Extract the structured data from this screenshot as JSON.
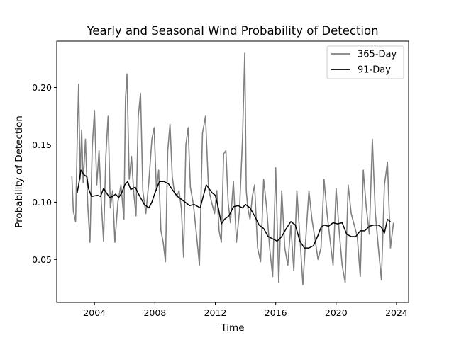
{
  "chart_data": {
    "type": "line",
    "title": "Yearly and Seasonal Wind Probability of Detection",
    "xlabel": "Time",
    "ylabel": "Probability of Detection",
    "xlim": [
      2001.5,
      2024.8
    ],
    "ylim": [
      0.0125,
      0.2405
    ],
    "x_ticks": [
      2004,
      2008,
      2012,
      2016,
      2020,
      2024
    ],
    "x_tick_labels": [
      "2004",
      "2008",
      "2012",
      "2016",
      "2020",
      "2024"
    ],
    "y_ticks": [
      0.05,
      0.1,
      0.15,
      0.2
    ],
    "y_tick_labels": [
      "0.05",
      "0.10",
      "0.15",
      "0.20"
    ],
    "grid": false,
    "legend_position": "upper right",
    "series": [
      {
        "name": "365-Day",
        "color": "#808080",
        "x": [
          2002.5,
          2002.6,
          2002.75,
          2002.85,
          2002.95,
          2003.05,
          2003.15,
          2003.25,
          2003.4,
          2003.55,
          2003.7,
          2003.85,
          2004.0,
          2004.15,
          2004.3,
          2004.45,
          2004.6,
          2004.75,
          2004.9,
          2005.05,
          2005.2,
          2005.35,
          2005.55,
          2005.75,
          2005.95,
          2006.05,
          2006.15,
          2006.3,
          2006.45,
          2006.6,
          2006.75,
          2006.9,
          2007.05,
          2007.2,
          2007.4,
          2007.6,
          2007.8,
          2007.95,
          2008.1,
          2008.25,
          2008.4,
          2008.55,
          2008.7,
          2008.85,
          2009.0,
          2009.15,
          2009.3,
          2009.45,
          2009.6,
          2009.75,
          2009.9,
          2010.05,
          2010.2,
          2010.35,
          2010.55,
          2010.75,
          2010.95,
          2011.15,
          2011.35,
          2011.55,
          2011.75,
          2011.95,
          2012.1,
          2012.25,
          2012.4,
          2012.55,
          2012.7,
          2012.85,
          2013.0,
          2013.2,
          2013.4,
          2013.6,
          2013.8,
          2013.95,
          2014.05,
          2014.15,
          2014.3,
          2014.45,
          2014.6,
          2014.8,
          2015.0,
          2015.2,
          2015.4,
          2015.6,
          2015.8,
          2016.0,
          2016.2,
          2016.4,
          2016.6,
          2016.8,
          2017.0,
          2017.2,
          2017.4,
          2017.6,
          2017.8,
          2018.0,
          2018.2,
          2018.4,
          2018.6,
          2018.8,
          2019.0,
          2019.2,
          2019.4,
          2019.6,
          2019.8,
          2020.0,
          2020.2,
          2020.4,
          2020.6,
          2020.8,
          2021.0,
          2021.2,
          2021.4,
          2021.6,
          2021.8,
          2022.0,
          2022.2,
          2022.4,
          2022.6,
          2022.8,
          2023.0,
          2023.2,
          2023.4,
          2023.6,
          2023.8
        ],
        "values": [
          0.123,
          0.092,
          0.083,
          0.15,
          0.203,
          0.12,
          0.163,
          0.117,
          0.155,
          0.098,
          0.065,
          0.148,
          0.18,
          0.115,
          0.145,
          0.1,
          0.066,
          0.14,
          0.175,
          0.095,
          0.11,
          0.065,
          0.1,
          0.115,
          0.085,
          0.19,
          0.212,
          0.12,
          0.14,
          0.108,
          0.088,
          0.175,
          0.195,
          0.11,
          0.09,
          0.118,
          0.155,
          0.165,
          0.11,
          0.128,
          0.075,
          0.065,
          0.048,
          0.145,
          0.168,
          0.122,
          0.108,
          0.105,
          0.11,
          0.095,
          0.052,
          0.15,
          0.165,
          0.113,
          0.098,
          0.072,
          0.045,
          0.16,
          0.175,
          0.112,
          0.1,
          0.09,
          0.11,
          0.075,
          0.065,
          0.142,
          0.145,
          0.1,
          0.082,
          0.118,
          0.065,
          0.092,
          0.155,
          0.23,
          0.11,
          0.095,
          0.085,
          0.105,
          0.115,
          0.06,
          0.048,
          0.12,
          0.095,
          0.06,
          0.035,
          0.13,
          0.03,
          0.11,
          0.06,
          0.045,
          0.08,
          0.04,
          0.11,
          0.07,
          0.028,
          0.07,
          0.11,
          0.085,
          0.068,
          0.05,
          0.06,
          0.12,
          0.09,
          0.067,
          0.045,
          0.112,
          0.075,
          0.045,
          0.03,
          0.115,
          0.09,
          0.08,
          0.07,
          0.035,
          0.128,
          0.095,
          0.072,
          0.155,
          0.09,
          0.06,
          0.032,
          0.115,
          0.135,
          0.06,
          0.082
        ]
      },
      {
        "name": "91-Day",
        "color": "#000000",
        "x": [
          2002.85,
          2002.95,
          2003.1,
          2003.3,
          2003.5,
          2003.6,
          2003.8,
          2004.2,
          2004.4,
          2004.6,
          2004.8,
          2005.0,
          2005.2,
          2005.4,
          2005.6,
          2005.8,
          2006.0,
          2006.2,
          2006.4,
          2006.7,
          2007.0,
          2007.3,
          2007.6,
          2007.8,
          2008.0,
          2008.3,
          2008.6,
          2008.9,
          2009.2,
          2009.5,
          2009.8,
          2010.0,
          2010.3,
          2010.6,
          2011.0,
          2011.4,
          2011.8,
          2012.0,
          2012.2,
          2012.4,
          2012.6,
          2012.9,
          2013.2,
          2013.5,
          2013.8,
          2014.0,
          2014.3,
          2014.6,
          2014.9,
          2015.2,
          2015.5,
          2015.8,
          2016.1,
          2016.4,
          2016.7,
          2017.0,
          2017.3,
          2017.6,
          2017.9,
          2018.2,
          2018.5,
          2018.8,
          2019.0,
          2019.2,
          2019.5,
          2019.8,
          2020.1,
          2020.4,
          2020.7,
          2021.0,
          2021.3,
          2021.6,
          2021.9,
          2022.2,
          2022.5,
          2022.8,
          2023.0,
          2023.2,
          2023.4,
          2023.6
        ],
        "values": [
          0.108,
          0.115,
          0.128,
          0.124,
          0.122,
          0.112,
          0.105,
          0.106,
          0.105,
          0.112,
          0.108,
          0.104,
          0.105,
          0.107,
          0.104,
          0.108,
          0.115,
          0.118,
          0.111,
          0.113,
          0.105,
          0.098,
          0.095,
          0.1,
          0.108,
          0.118,
          0.118,
          0.116,
          0.11,
          0.105,
          0.102,
          0.1,
          0.097,
          0.098,
          0.095,
          0.115,
          0.108,
          0.106,
          0.095,
          0.081,
          0.085,
          0.088,
          0.096,
          0.097,
          0.095,
          0.098,
          0.095,
          0.088,
          0.08,
          0.077,
          0.07,
          0.068,
          0.066,
          0.07,
          0.077,
          0.083,
          0.08,
          0.066,
          0.06,
          0.06,
          0.062,
          0.071,
          0.078,
          0.08,
          0.079,
          0.082,
          0.081,
          0.082,
          0.072,
          0.07,
          0.07,
          0.075,
          0.075,
          0.079,
          0.08,
          0.08,
          0.078,
          0.073,
          0.085,
          0.083
        ]
      }
    ]
  }
}
